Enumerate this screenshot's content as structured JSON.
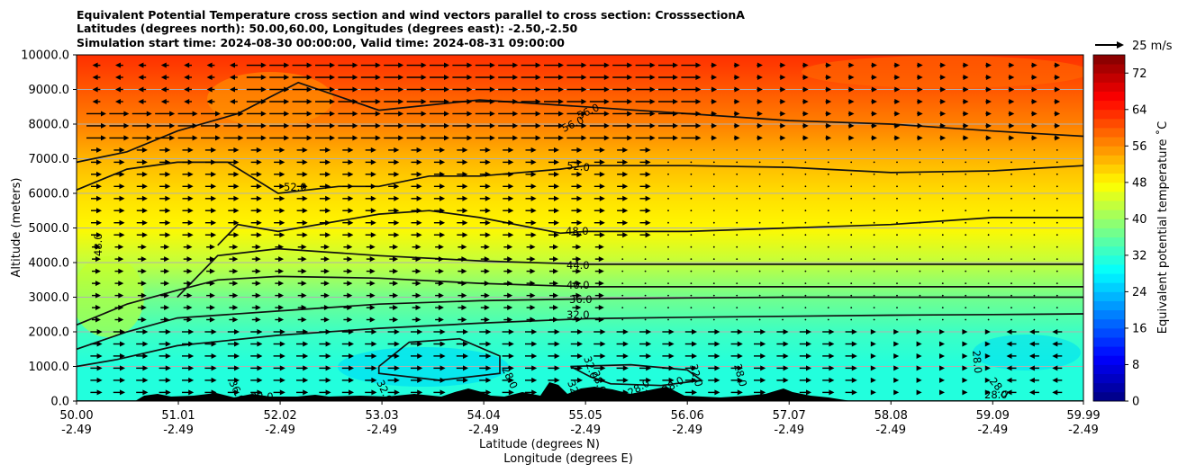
{
  "chart_data": {
    "type": "heatmap",
    "title_lines": [
      "Equivalent Potential Temperature cross section and wind vectors parallel to cross section: CrosssectionA",
      "Latitudes (degrees north): 50.00,60.00, Longitudes (degrees east): -2.50,-2.50",
      "Simulation start time: 2024-08-30 00:00:00, Valid time: 2024-08-31 09:00:00"
    ],
    "ylabel": "Altitude (meters)",
    "xlabel_line1": "Latitude (degrees N)",
    "xlabel_line2": "Longitude (degrees E)",
    "ylim": [
      0,
      10000
    ],
    "y_ticks": [
      "0.0",
      "1000.0",
      "2000.0",
      "3000.0",
      "4000.0",
      "5000.0",
      "6000.0",
      "7000.0",
      "8000.0",
      "9000.0",
      "10000.0"
    ],
    "x_ticks": [
      {
        "lat": "50.00",
        "lon": "-2.49"
      },
      {
        "lat": "51.01",
        "lon": "-2.49"
      },
      {
        "lat": "52.02",
        "lon": "-2.49"
      },
      {
        "lat": "53.03",
        "lon": "-2.49"
      },
      {
        "lat": "54.04",
        "lon": "-2.49"
      },
      {
        "lat": "55.05",
        "lon": "-2.49"
      },
      {
        "lat": "56.06",
        "lon": "-2.49"
      },
      {
        "lat": "57.07",
        "lon": "-2.49"
      },
      {
        "lat": "58.08",
        "lon": "-2.49"
      },
      {
        "lat": "59.09",
        "lon": "-2.49"
      },
      {
        "lat": "59.99",
        "lon": "-2.49"
      }
    ],
    "xlim_lat": [
      50.0,
      59.99
    ],
    "colorbar": {
      "label": "Equivalent potential temperature ˚C",
      "range": [
        0,
        76
      ],
      "step": 2,
      "ticks": [
        "0",
        "8",
        "16",
        "24",
        "32",
        "40",
        "48",
        "56",
        "64",
        "72"
      ]
    },
    "quiver_key": {
      "label": "25 m/s"
    },
    "theta_e_profile": [
      {
        "altitude": 0,
        "value": 31
      },
      {
        "altitude": 1000,
        "value": 31
      },
      {
        "altitude": 2000,
        "value": 33
      },
      {
        "altitude": 3000,
        "value": 37
      },
      {
        "altitude": 4000,
        "value": 43
      },
      {
        "altitude": 5000,
        "value": 48
      },
      {
        "altitude": 6000,
        "value": 50
      },
      {
        "altitude": 7000,
        "value": 53
      },
      {
        "altitude": 8000,
        "value": 57
      },
      {
        "altitude": 9000,
        "value": 60
      },
      {
        "altitude": 10000,
        "value": 63
      }
    ],
    "contour_levels": [
      {
        "level": 28.0,
        "label": "28.0",
        "points": [
          [
            50.0,
            0
          ],
          [
            59.99,
            0
          ]
        ]
      },
      {
        "level": 32.0,
        "label": "32.0",
        "points": [
          [
            50.0,
            1000
          ],
          [
            50.4,
            1200
          ],
          [
            51.0,
            1600
          ],
          [
            52.0,
            1900
          ],
          [
            53.0,
            2100
          ],
          [
            54.0,
            2250
          ],
          [
            55.05,
            2380
          ],
          [
            56.06,
            2420
          ],
          [
            57.07,
            2450
          ],
          [
            58.08,
            2480
          ],
          [
            59.09,
            2500
          ],
          [
            59.99,
            2520
          ]
        ]
      },
      {
        "level": 36.0,
        "label": "36.0",
        "points": [
          [
            50.0,
            1500
          ],
          [
            50.5,
            2000
          ],
          [
            51.0,
            2400
          ],
          [
            52.0,
            2600
          ],
          [
            53.0,
            2800
          ],
          [
            54.0,
            2900
          ],
          [
            55.05,
            2950
          ],
          [
            56.06,
            2980
          ],
          [
            57.07,
            3000
          ],
          [
            58.08,
            3000
          ],
          [
            59.09,
            3000
          ],
          [
            59.99,
            3000
          ]
        ]
      },
      {
        "level": 40.0,
        "label": "40.0",
        "points": [
          [
            50.0,
            2200
          ],
          [
            50.5,
            2800
          ],
          [
            51.0,
            3200
          ],
          [
            51.4,
            3500
          ],
          [
            52.0,
            3600
          ],
          [
            53.0,
            3550
          ],
          [
            54.0,
            3400
          ],
          [
            55.05,
            3300
          ],
          [
            56.06,
            3300
          ],
          [
            57.07,
            3300
          ],
          [
            58.08,
            3300
          ],
          [
            59.09,
            3300
          ],
          [
            59.99,
            3300
          ]
        ]
      },
      {
        "level": 44.0,
        "label": "44.0",
        "points": [
          [
            51.0,
            3000
          ],
          [
            51.4,
            4200
          ],
          [
            52.0,
            4400
          ],
          [
            53.0,
            4200
          ],
          [
            54.0,
            4050
          ],
          [
            55.05,
            3950
          ],
          [
            56.06,
            3950
          ],
          [
            57.07,
            3950
          ],
          [
            58.08,
            3950
          ],
          [
            59.09,
            3950
          ],
          [
            59.99,
            3950
          ]
        ]
      },
      {
        "level": 48.0,
        "label": "48.0",
        "points": [
          [
            51.4,
            4500
          ],
          [
            51.6,
            5100
          ],
          [
            52.0,
            4900
          ],
          [
            53.0,
            5400
          ],
          [
            53.5,
            5500
          ],
          [
            54.0,
            5300
          ],
          [
            54.8,
            4850
          ],
          [
            55.05,
            4900
          ],
          [
            56.06,
            4900
          ],
          [
            57.07,
            5000
          ],
          [
            58.08,
            5100
          ],
          [
            59.09,
            5300
          ],
          [
            59.99,
            5300
          ]
        ]
      },
      {
        "level": 52.0,
        "label": "52.0",
        "points": [
          [
            50.0,
            6100
          ],
          [
            50.5,
            6700
          ],
          [
            51.0,
            6900
          ],
          [
            51.5,
            6900
          ],
          [
            52.0,
            6000
          ],
          [
            52.6,
            6200
          ],
          [
            53.0,
            6200
          ],
          [
            53.5,
            6500
          ],
          [
            54.0,
            6500
          ],
          [
            54.8,
            6700
          ],
          [
            55.05,
            6800
          ],
          [
            56.06,
            6800
          ],
          [
            57.07,
            6750
          ],
          [
            58.08,
            6600
          ],
          [
            59.09,
            6650
          ],
          [
            59.99,
            6800
          ]
        ]
      },
      {
        "level": 56.0,
        "label": "56.0",
        "points": [
          [
            50.0,
            6900
          ],
          [
            50.5,
            7200
          ],
          [
            51.0,
            7800
          ],
          [
            51.6,
            8300
          ],
          [
            52.2,
            9200
          ],
          [
            52.6,
            8800
          ],
          [
            53.0,
            8400
          ],
          [
            54.0,
            8700
          ],
          [
            55.05,
            8500
          ],
          [
            56.06,
            8300
          ],
          [
            57.07,
            8100
          ],
          [
            58.08,
            8000
          ],
          [
            59.09,
            7800
          ],
          [
            59.99,
            7650
          ]
        ]
      }
    ],
    "contour_annotations": [
      "52.0",
      "48.0",
      "56.0",
      "56.0",
      "52.0",
      "48.0",
      "44.0",
      "40.0",
      "36.0",
      "32.0",
      "32.0",
      "36.0",
      "28.0",
      "32.0",
      "32.0",
      "28.0",
      "32.0",
      "28.0",
      "28.0",
      "32.0",
      "28.0",
      "28.0",
      "28.0",
      "28.0"
    ]
  },
  "colors": {
    "terrain": "#000000",
    "gridline": "#b0b0b0",
    "contour": "#111111"
  }
}
